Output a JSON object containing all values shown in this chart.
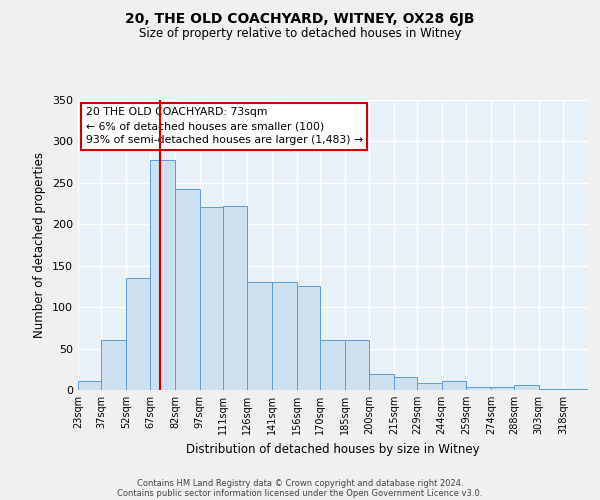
{
  "title_line1": "20, THE OLD COACHYARD, WITNEY, OX28 6JB",
  "title_line2": "Size of property relative to detached houses in Witney",
  "xlabel": "Distribution of detached houses by size in Witney",
  "ylabel": "Number of detached properties",
  "bin_labels": [
    "23sqm",
    "37sqm",
    "52sqm",
    "67sqm",
    "82sqm",
    "97sqm",
    "111sqm",
    "126sqm",
    "141sqm",
    "156sqm",
    "170sqm",
    "185sqm",
    "200sqm",
    "215sqm",
    "229sqm",
    "244sqm",
    "259sqm",
    "274sqm",
    "288sqm",
    "303sqm",
    "318sqm"
  ],
  "bin_edges": [
    23,
    37,
    52,
    67,
    82,
    97,
    111,
    126,
    141,
    156,
    170,
    185,
    200,
    215,
    229,
    244,
    259,
    274,
    288,
    303,
    318
  ],
  "bar_heights": [
    11,
    60,
    135,
    277,
    242,
    221,
    222,
    130,
    130,
    125,
    60,
    60,
    19,
    16,
    9,
    11,
    4,
    4,
    6,
    1,
    1
  ],
  "bar_color": "#cce0f0",
  "bar_edge_color": "#5b9bd5",
  "background_color": "#e8f0f8",
  "grid_color": "#ffffff",
  "vline_x": 73,
  "vline_color": "#cc0000",
  "annotation_line1": "20 THE OLD COACHYARD: 73sqm",
  "annotation_line2": "← 6% of detached houses are smaller (100)",
  "annotation_line3": "93% of semi-detached houses are larger (1,483) →",
  "annotation_box_color": "#ffffff",
  "annotation_box_edge": "#cc0000",
  "ylim": [
    0,
    350
  ],
  "yticks": [
    0,
    50,
    100,
    150,
    200,
    250,
    300,
    350
  ],
  "footer_line1": "Contains HM Land Registry data © Crown copyright and database right 2024.",
  "footer_line2": "Contains public sector information licensed under the Open Government Licence v3.0."
}
